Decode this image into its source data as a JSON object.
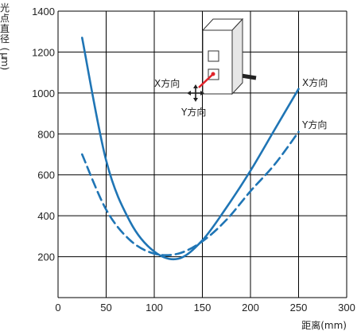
{
  "chart_data": {
    "type": "line",
    "xlabel": "距离(mm)",
    "ylabel": "光点直径(μm)",
    "xlim": [
      0,
      300
    ],
    "ylim": [
      0,
      1400
    ],
    "xticks": [
      "0",
      "50",
      "100",
      "150",
      "200",
      "250",
      "300"
    ],
    "yticks": [
      "200",
      "400",
      "600",
      "800",
      "1000",
      "1200",
      "1400"
    ],
    "grid": true,
    "colors": {
      "line": "#1f75b5",
      "grid": "#000000",
      "sensor_dot": "#e0232a"
    },
    "series": [
      {
        "name": "X方向",
        "style": "solid",
        "x": [
          25,
          50,
          75,
          100,
          125,
          150,
          175,
          200,
          225,
          250
        ],
        "y": [
          1270,
          670,
          370,
          225,
          190,
          280,
          440,
          620,
          820,
          1020
        ]
      },
      {
        "name": "Y方向",
        "style": "dashed",
        "x": [
          25,
          50,
          75,
          100,
          125,
          150,
          175,
          200,
          225,
          250
        ],
        "y": [
          700,
          430,
          280,
          215,
          215,
          275,
          380,
          520,
          650,
          810
        ]
      }
    ],
    "inset": {
      "icon": "laser-sensor-icon",
      "labels": [
        "X方向",
        "Y方向"
      ]
    }
  }
}
